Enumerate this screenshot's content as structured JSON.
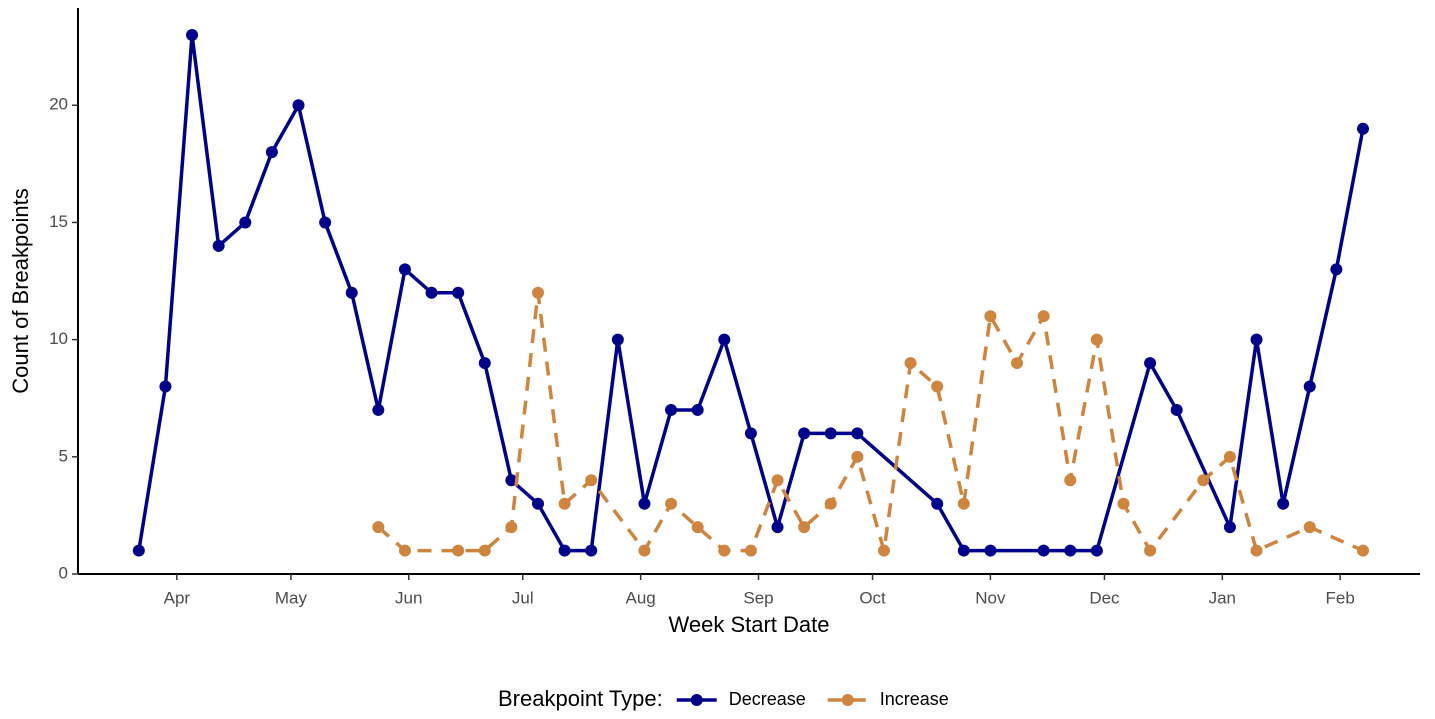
{
  "chart_data": {
    "type": "line",
    "x_label": "Week Start Date",
    "y_label": "Count of Breakpoints",
    "legend_title": "Breakpoint Type:",
    "legend_position": "bottom",
    "xlim": [
      -26,
      327
    ],
    "xticks": [
      {
        "value": 0,
        "label": "Apr"
      },
      {
        "value": 30,
        "label": "May"
      },
      {
        "value": 61,
        "label": "Jun"
      },
      {
        "value": 91,
        "label": "Jul"
      },
      {
        "value": 122,
        "label": "Aug"
      },
      {
        "value": 153,
        "label": "Sep"
      },
      {
        "value": 183,
        "label": "Oct"
      },
      {
        "value": 214,
        "label": "Nov"
      },
      {
        "value": 244,
        "label": "Dec"
      },
      {
        "value": 275,
        "label": "Jan"
      },
      {
        "value": 306,
        "label": "Feb"
      }
    ],
    "ylim": [
      0,
      24.15
    ],
    "yticks": [
      0,
      5,
      10,
      15,
      20
    ],
    "series": [
      {
        "name": "Decrease",
        "color": "#00008b",
        "linestyle": "solid",
        "x": [
          -10,
          -3,
          4,
          11,
          18,
          25,
          32,
          39,
          46,
          53,
          60,
          67,
          74,
          81,
          88,
          95,
          102,
          109,
          116,
          123,
          130,
          137,
          144,
          151,
          158,
          165,
          172,
          179,
          200,
          207,
          214,
          228,
          235,
          242,
          256,
          263,
          277,
          284,
          291,
          298,
          305,
          312
        ],
        "values": [
          1,
          8,
          23,
          14,
          15,
          18,
          20,
          15,
          12,
          7,
          13,
          12,
          12,
          9,
          4,
          3,
          1,
          1,
          10,
          3,
          7,
          7,
          10,
          6,
          2,
          6,
          6,
          6,
          3,
          1,
          1,
          1,
          1,
          1,
          9,
          7,
          2,
          10,
          3,
          8,
          13,
          19
        ]
      },
      {
        "name": "Increase",
        "color": "#cd853f",
        "linestyle": "dashed",
        "x": [
          53,
          60,
          74,
          81,
          88,
          95,
          102,
          109,
          123,
          130,
          137,
          144,
          151,
          158,
          165,
          172,
          179,
          186,
          193,
          200,
          207,
          214,
          221,
          228,
          235,
          242,
          249,
          256,
          270,
          277,
          284,
          298,
          312
        ],
        "values": [
          2,
          1,
          1,
          1,
          2,
          12,
          3,
          4,
          1,
          3,
          2,
          1,
          1,
          4,
          2,
          3,
          5,
          1,
          9,
          8,
          3,
          11,
          9,
          11,
          4,
          10,
          3,
          1,
          4,
          5,
          1,
          2,
          1
        ]
      }
    ]
  }
}
